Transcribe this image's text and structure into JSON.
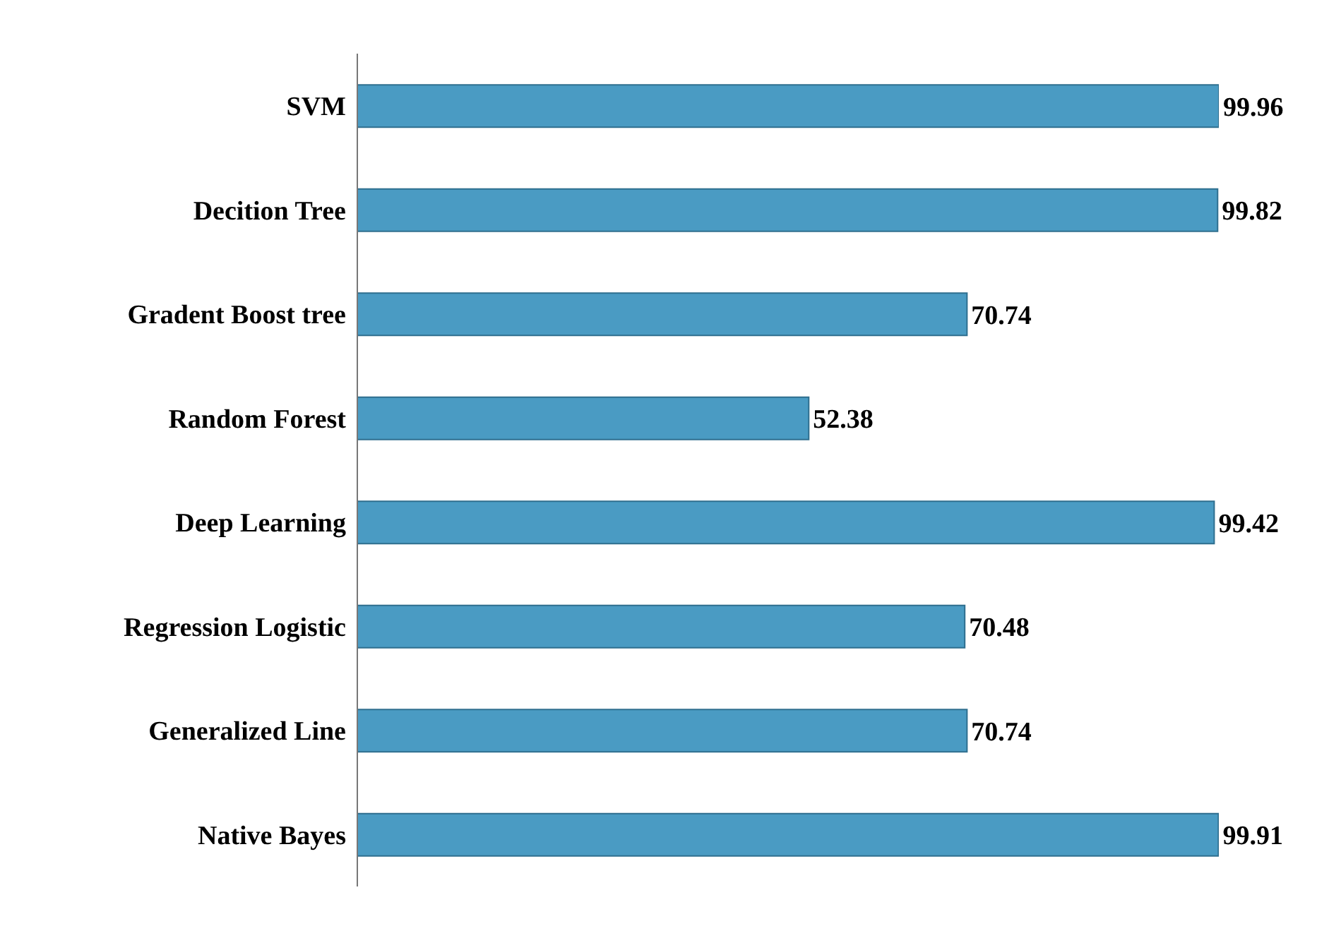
{
  "chart_data": {
    "type": "bar",
    "orientation": "horizontal",
    "categories": [
      "SVM",
      "Decition Tree",
      "Gradent Boost tree",
      "Random Forest",
      "Deep Learning",
      "Regression Logistic",
      "Generalized Line",
      "Native Bayes"
    ],
    "values": [
      99.96,
      99.82,
      70.74,
      52.38,
      99.42,
      70.48,
      70.74,
      99.91
    ],
    "color": "#4a9bc3",
    "data_labels": true,
    "grid": false,
    "legend": false
  }
}
